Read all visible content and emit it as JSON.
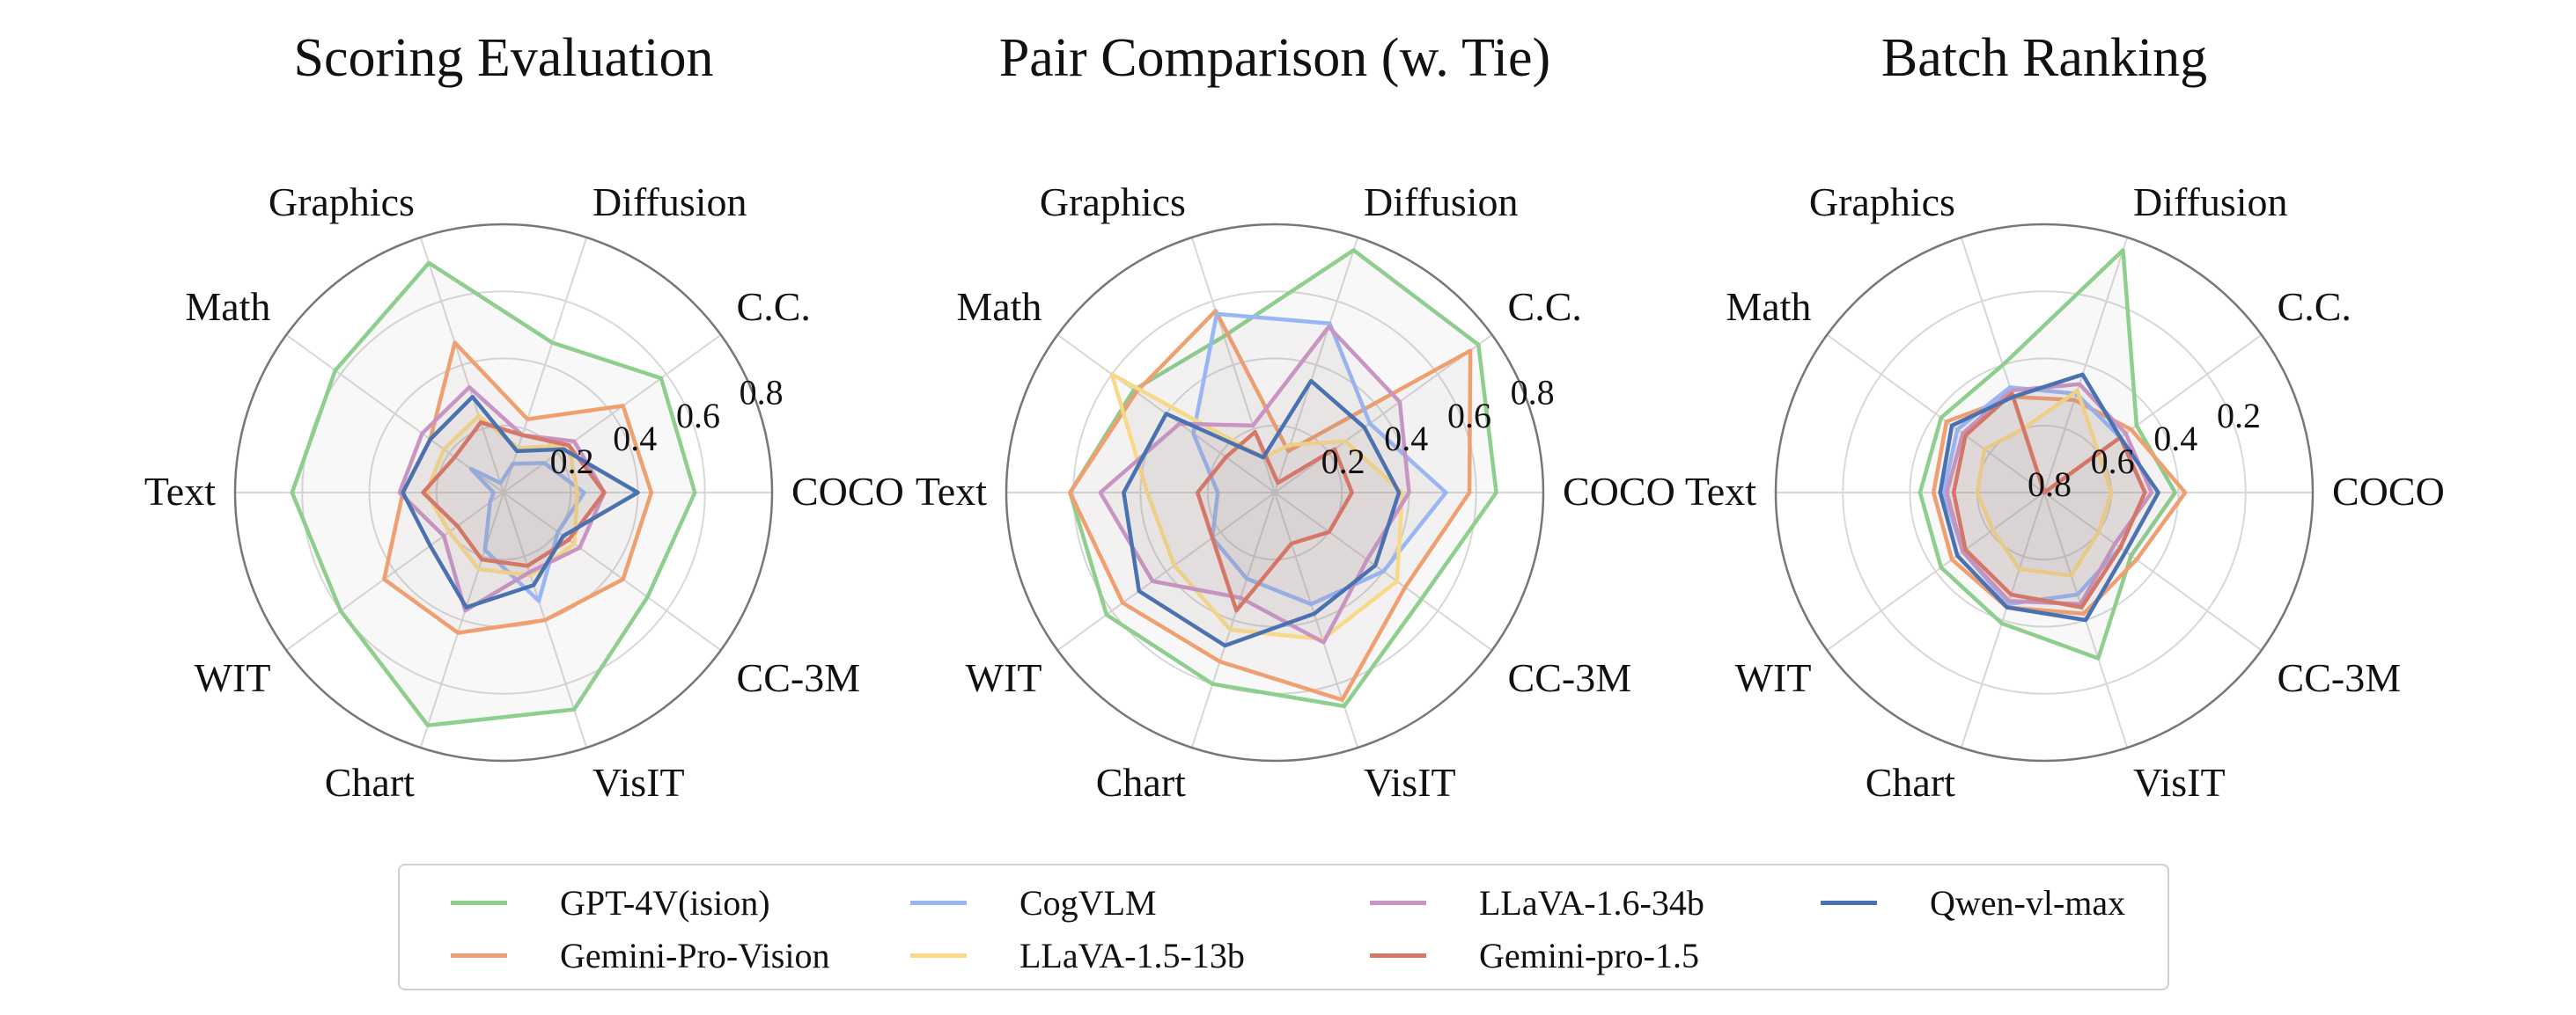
{
  "chart_data": [
    {
      "type": "radar",
      "title": "Scoring Evaluation",
      "axes": [
        "COCO",
        "C.C.",
        "Diffusion",
        "Graphics",
        "Math",
        "Text",
        "WIT",
        "Chart",
        "VisIT",
        "CC-3M"
      ],
      "radial_range": [
        0,
        0.8
      ],
      "radial_ticks": [
        0.2,
        0.4,
        0.6,
        0.8
      ],
      "radial_tick_labels": [
        "0.2",
        "0.4",
        "0.6",
        "0.8"
      ],
      "radial_direction": "increasing-outward",
      "grid": true,
      "series": [
        {
          "name": "GPT-4V(ision)",
          "values": [
            0.57,
            0.58,
            0.47,
            0.72,
            0.62,
            0.63,
            0.6,
            0.73,
            0.68,
            0.53
          ]
        },
        {
          "name": "Gemini-Pro-Vision",
          "values": [
            0.44,
            0.44,
            0.23,
            0.47,
            0.27,
            0.3,
            0.44,
            0.44,
            0.4,
            0.44
          ]
        },
        {
          "name": "CogVLM",
          "values": [
            0.24,
            0.15,
            0.09,
            0.03,
            0.12,
            0.03,
            0.05,
            0.18,
            0.34,
            0.2
          ]
        },
        {
          "name": "LLaVA-1.5-13b",
          "values": [
            0.22,
            0.24,
            0.14,
            0.24,
            0.22,
            0.23,
            0.2,
            0.24,
            0.26,
            0.26
          ]
        },
        {
          "name": "LLaVA-1.6-34b",
          "values": [
            0.3,
            0.26,
            0.18,
            0.33,
            0.3,
            0.31,
            0.22,
            0.37,
            0.25,
            0.28
          ]
        },
        {
          "name": "Gemini-pro-1.5",
          "values": [
            0.3,
            0.24,
            0.18,
            0.22,
            0.18,
            0.24,
            0.17,
            0.21,
            0.23,
            0.24
          ]
        },
        {
          "name": "Qwen-vl-max",
          "values": [
            0.4,
            0.22,
            0.13,
            0.3,
            0.27,
            0.3,
            0.27,
            0.36,
            0.29,
            0.22
          ]
        }
      ]
    },
    {
      "type": "radar",
      "title": "Pair Comparison (w. Tie)",
      "axes": [
        "COCO",
        "C.C.",
        "Diffusion",
        "Graphics",
        "Math",
        "Text",
        "WIT",
        "Chart",
        "VisIT",
        "CC-3M"
      ],
      "radial_range": [
        0,
        0.8
      ],
      "radial_ticks": [
        0.2,
        0.4,
        0.6,
        0.8
      ],
      "radial_tick_labels": [
        "0.2",
        "0.4",
        "0.6",
        "0.8"
      ],
      "radial_direction": "increasing-outward",
      "grid": true,
      "series": [
        {
          "name": "GPT-4V(ision)",
          "values": [
            0.66,
            0.75,
            0.76,
            0.49,
            0.52,
            0.61,
            0.62,
            0.6,
            0.67,
            0.54
          ]
        },
        {
          "name": "Gemini-Pro-Vision",
          "values": [
            0.58,
            0.72,
            0.13,
            0.57,
            0.51,
            0.61,
            0.56,
            0.53,
            0.65,
            0.48
          ]
        },
        {
          "name": "CogVLM",
          "values": [
            0.51,
            0.35,
            0.53,
            0.56,
            0.3,
            0.17,
            0.23,
            0.27,
            0.35,
            0.4
          ]
        },
        {
          "name": "LLaVA-1.5-13b",
          "values": [
            0.38,
            0.26,
            0.15,
            0.11,
            0.6,
            0.38,
            0.37,
            0.43,
            0.46,
            0.45
          ]
        },
        {
          "name": "LLaVA-1.6-34b",
          "values": [
            0.4,
            0.46,
            0.52,
            0.21,
            0.35,
            0.52,
            0.45,
            0.33,
            0.47,
            0.34
          ]
        },
        {
          "name": "Gemini-pro-1.5",
          "values": [
            0.23,
            0.22,
            0.03,
            0.19,
            0.18,
            0.23,
            0.23,
            0.37,
            0.16,
            0.2
          ]
        },
        {
          "name": "Qwen-vl-max",
          "values": [
            0.37,
            0.33,
            0.35,
            0.11,
            0.4,
            0.45,
            0.5,
            0.48,
            0.38,
            0.37
          ]
        }
      ]
    },
    {
      "type": "radar",
      "title": "Batch Ranking",
      "axes": [
        "COCO",
        "C.C.",
        "Diffusion",
        "Graphics",
        "Math",
        "Text",
        "WIT",
        "Chart",
        "VisIT",
        "CC-3M"
      ],
      "radial_range": [
        0,
        0.8
      ],
      "radial_ticks": [
        0.2,
        0.4,
        0.6,
        0.8
      ],
      "radial_tick_labels": [
        "0.2",
        "0.4",
        "0.6",
        "0.8"
      ],
      "radial_direction": "decreasing-outward",
      "grid": true,
      "series": [
        {
          "name": "GPT-4V(ision)",
          "values": [
            0.41,
            0.46,
            0.04,
            0.4,
            0.42,
            0.43,
            0.42,
            0.39,
            0.28,
            0.48
          ]
        },
        {
          "name": "Gemini-Pro-Vision",
          "values": [
            0.38,
            0.48,
            0.51,
            0.5,
            0.44,
            0.47,
            0.46,
            0.44,
            0.42,
            0.46
          ]
        },
        {
          "name": "CogVLM",
          "values": [
            0.5,
            0.52,
            0.49,
            0.47,
            0.48,
            0.5,
            0.5,
            0.45,
            0.48,
            0.52
          ]
        },
        {
          "name": "LLaVA-1.5-13b",
          "values": [
            0.6,
            0.6,
            0.48,
            0.6,
            0.58,
            0.6,
            0.61,
            0.56,
            0.54,
            0.6
          ]
        },
        {
          "name": "LLaVA-1.6-34b",
          "values": [
            0.48,
            0.5,
            0.46,
            0.48,
            0.5,
            0.51,
            0.5,
            0.46,
            0.45,
            0.54
          ]
        },
        {
          "name": "Gemini-pro-1.5",
          "values": [
            0.5,
            0.52,
            0.8,
            0.49,
            0.51,
            0.53,
            0.51,
            0.48,
            0.44,
            0.52
          ]
        },
        {
          "name": "Qwen-vl-max",
          "values": [
            0.46,
            0.52,
            0.43,
            0.5,
            0.46,
            0.49,
            0.48,
            0.44,
            0.4,
            0.5
          ]
        }
      ]
    }
  ],
  "colors": {
    "GPT-4V(ision)": "#8ecf8e",
    "Gemini-Pro-Vision": "#f0a070",
    "CogVLM": "#98b6f4",
    "LLaVA-1.5-13b": "#f8d988",
    "LLaVA-1.6-34b": "#c894c4",
    "Gemini-pro-1.5": "#d87668",
    "Qwen-vl-max": "#4a72b0",
    "grid": "#d8d8d8",
    "outer_circle": "#777777",
    "fill_tint": "#9b8a80"
  },
  "legend": {
    "placement": "bottom-center",
    "columns": 4,
    "items": [
      "GPT-4V(ision)",
      "Gemini-Pro-Vision",
      "CogVLM",
      "LLaVA-1.5-13b",
      "LLaVA-1.6-34b",
      "Gemini-pro-1.5",
      "Qwen-vl-max"
    ]
  }
}
